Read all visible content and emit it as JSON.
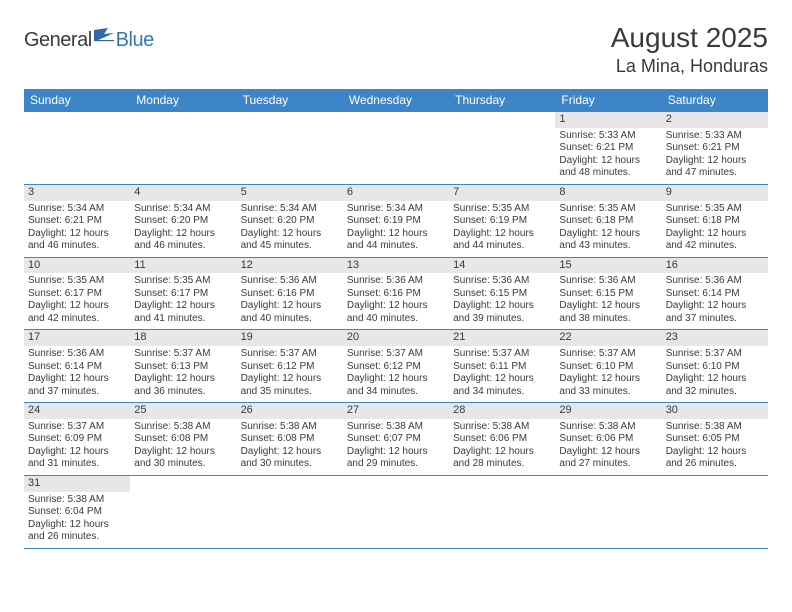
{
  "logo": {
    "text1": "General",
    "text2": "Blue"
  },
  "title": "August 2025",
  "location": "La Mina, Honduras",
  "colors": {
    "header_bg": "#3d85c6",
    "header_text": "#ffffff",
    "daynum_bg": "#e7e7e7",
    "cell_border": "#3d85c6",
    "body_text": "#3a3a3a",
    "logo_gray": "#3a3a3a",
    "logo_blue": "#3478b5"
  },
  "fonts": {
    "title_size": 28,
    "location_size": 18,
    "header_size": 12,
    "daynum_size": 11,
    "cell_size": 10
  },
  "weekdays": [
    "Sunday",
    "Monday",
    "Tuesday",
    "Wednesday",
    "Thursday",
    "Friday",
    "Saturday"
  ],
  "weeks": [
    [
      null,
      null,
      null,
      null,
      null,
      {
        "n": "1",
        "sunrise": "5:33 AM",
        "sunset": "6:21 PM",
        "dl1": "12 hours",
        "dl2": "and 48 minutes."
      },
      {
        "n": "2",
        "sunrise": "5:33 AM",
        "sunset": "6:21 PM",
        "dl1": "12 hours",
        "dl2": "and 47 minutes."
      }
    ],
    [
      {
        "n": "3",
        "sunrise": "5:34 AM",
        "sunset": "6:21 PM",
        "dl1": "12 hours",
        "dl2": "and 46 minutes."
      },
      {
        "n": "4",
        "sunrise": "5:34 AM",
        "sunset": "6:20 PM",
        "dl1": "12 hours",
        "dl2": "and 46 minutes."
      },
      {
        "n": "5",
        "sunrise": "5:34 AM",
        "sunset": "6:20 PM",
        "dl1": "12 hours",
        "dl2": "and 45 minutes."
      },
      {
        "n": "6",
        "sunrise": "5:34 AM",
        "sunset": "6:19 PM",
        "dl1": "12 hours",
        "dl2": "and 44 minutes."
      },
      {
        "n": "7",
        "sunrise": "5:35 AM",
        "sunset": "6:19 PM",
        "dl1": "12 hours",
        "dl2": "and 44 minutes."
      },
      {
        "n": "8",
        "sunrise": "5:35 AM",
        "sunset": "6:18 PM",
        "dl1": "12 hours",
        "dl2": "and 43 minutes."
      },
      {
        "n": "9",
        "sunrise": "5:35 AM",
        "sunset": "6:18 PM",
        "dl1": "12 hours",
        "dl2": "and 42 minutes."
      }
    ],
    [
      {
        "n": "10",
        "sunrise": "5:35 AM",
        "sunset": "6:17 PM",
        "dl1": "12 hours",
        "dl2": "and 42 minutes."
      },
      {
        "n": "11",
        "sunrise": "5:35 AM",
        "sunset": "6:17 PM",
        "dl1": "12 hours",
        "dl2": "and 41 minutes."
      },
      {
        "n": "12",
        "sunrise": "5:36 AM",
        "sunset": "6:16 PM",
        "dl1": "12 hours",
        "dl2": "and 40 minutes."
      },
      {
        "n": "13",
        "sunrise": "5:36 AM",
        "sunset": "6:16 PM",
        "dl1": "12 hours",
        "dl2": "and 40 minutes."
      },
      {
        "n": "14",
        "sunrise": "5:36 AM",
        "sunset": "6:15 PM",
        "dl1": "12 hours",
        "dl2": "and 39 minutes."
      },
      {
        "n": "15",
        "sunrise": "5:36 AM",
        "sunset": "6:15 PM",
        "dl1": "12 hours",
        "dl2": "and 38 minutes."
      },
      {
        "n": "16",
        "sunrise": "5:36 AM",
        "sunset": "6:14 PM",
        "dl1": "12 hours",
        "dl2": "and 37 minutes."
      }
    ],
    [
      {
        "n": "17",
        "sunrise": "5:36 AM",
        "sunset": "6:14 PM",
        "dl1": "12 hours",
        "dl2": "and 37 minutes."
      },
      {
        "n": "18",
        "sunrise": "5:37 AM",
        "sunset": "6:13 PM",
        "dl1": "12 hours",
        "dl2": "and 36 minutes."
      },
      {
        "n": "19",
        "sunrise": "5:37 AM",
        "sunset": "6:12 PM",
        "dl1": "12 hours",
        "dl2": "and 35 minutes."
      },
      {
        "n": "20",
        "sunrise": "5:37 AM",
        "sunset": "6:12 PM",
        "dl1": "12 hours",
        "dl2": "and 34 minutes."
      },
      {
        "n": "21",
        "sunrise": "5:37 AM",
        "sunset": "6:11 PM",
        "dl1": "12 hours",
        "dl2": "and 34 minutes."
      },
      {
        "n": "22",
        "sunrise": "5:37 AM",
        "sunset": "6:10 PM",
        "dl1": "12 hours",
        "dl2": "and 33 minutes."
      },
      {
        "n": "23",
        "sunrise": "5:37 AM",
        "sunset": "6:10 PM",
        "dl1": "12 hours",
        "dl2": "and 32 minutes."
      }
    ],
    [
      {
        "n": "24",
        "sunrise": "5:37 AM",
        "sunset": "6:09 PM",
        "dl1": "12 hours",
        "dl2": "and 31 minutes."
      },
      {
        "n": "25",
        "sunrise": "5:38 AM",
        "sunset": "6:08 PM",
        "dl1": "12 hours",
        "dl2": "and 30 minutes."
      },
      {
        "n": "26",
        "sunrise": "5:38 AM",
        "sunset": "6:08 PM",
        "dl1": "12 hours",
        "dl2": "and 30 minutes."
      },
      {
        "n": "27",
        "sunrise": "5:38 AM",
        "sunset": "6:07 PM",
        "dl1": "12 hours",
        "dl2": "and 29 minutes."
      },
      {
        "n": "28",
        "sunrise": "5:38 AM",
        "sunset": "6:06 PM",
        "dl1": "12 hours",
        "dl2": "and 28 minutes."
      },
      {
        "n": "29",
        "sunrise": "5:38 AM",
        "sunset": "6:06 PM",
        "dl1": "12 hours",
        "dl2": "and 27 minutes."
      },
      {
        "n": "30",
        "sunrise": "5:38 AM",
        "sunset": "6:05 PM",
        "dl1": "12 hours",
        "dl2": "and 26 minutes."
      }
    ],
    [
      {
        "n": "31",
        "sunrise": "5:38 AM",
        "sunset": "6:04 PM",
        "dl1": "12 hours",
        "dl2": "and 26 minutes."
      },
      null,
      null,
      null,
      null,
      null,
      null
    ]
  ],
  "labels": {
    "sunrise": "Sunrise:",
    "sunset": "Sunset:",
    "daylight": "Daylight:"
  }
}
